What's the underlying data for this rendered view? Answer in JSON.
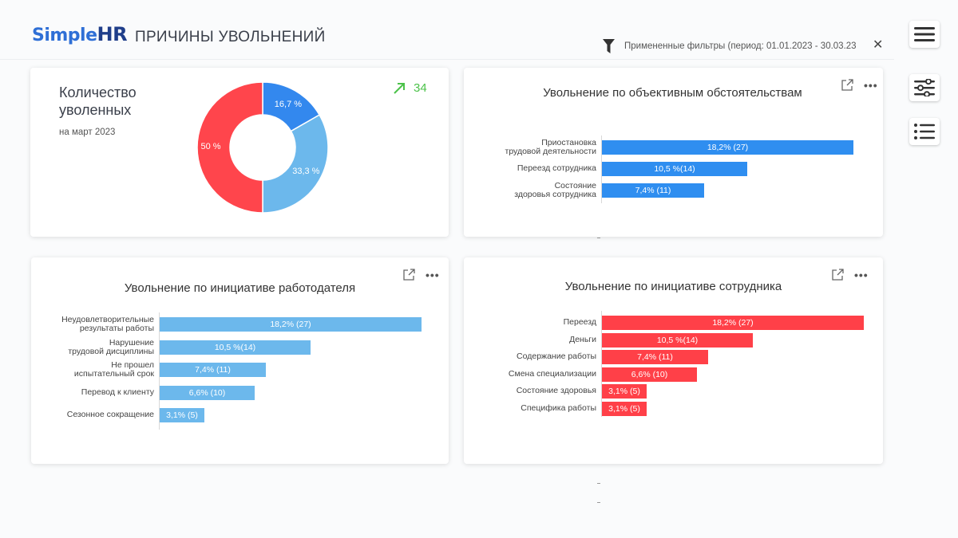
{
  "app": {
    "logo_simple": "Simple",
    "logo_hr": "HR",
    "title": "ПРИЧИНЫ УВОЛЬНЕНИЙ"
  },
  "filter": {
    "text": "Примененные фильтры (период: 01.01.2023 - 30.03.23",
    "close": "✕"
  },
  "side_buttons": {
    "menu": "menu-icon",
    "settings": "sliders-icon",
    "list": "list-icon"
  },
  "kpi": {
    "title_line1": "Количество",
    "title_line2": "уволенных",
    "subtitle": "на март 2023",
    "count": "34",
    "donut": [
      {
        "label": "16,7 %",
        "value": 16.7,
        "color": "#3388ee"
      },
      {
        "label": "33,3 %",
        "value": 33.3,
        "color": "#6cb8ec"
      },
      {
        "label": "50 %",
        "value": 50,
        "color": "#ff454c"
      }
    ]
  },
  "objective": {
    "title": "Увольнение по объективным обстоятельствам",
    "color": "#2f8ef0",
    "rows": [
      {
        "label_1": "Приостановка",
        "label_2": "трудовой деятельности",
        "value": 18.2,
        "text": "18,2% (27)"
      },
      {
        "label_1": "Переезд сотрудника",
        "label_2": "",
        "value": 10.5,
        "text": "10,5 %(14)"
      },
      {
        "label_1": "Состояние",
        "label_2": "здоровья сотрудника",
        "value": 7.4,
        "text": "7,4% (11)"
      }
    ]
  },
  "employer": {
    "title": "Увольнение по инициативе работодателя",
    "color": "#6cb8ec",
    "rows": [
      {
        "label_1": "Неудовлетворительные",
        "label_2": "результаты работы",
        "value": 18.2,
        "text": "18,2% (27)"
      },
      {
        "label_1": "Нарушение",
        "label_2": "трудовой дисциплины",
        "value": 10.5,
        "text": "10,5 %(14)"
      },
      {
        "label_1": "Не прошел",
        "label_2": "испытательный срок",
        "value": 7.4,
        "text": "7,4% (11)"
      },
      {
        "label_1": "Перевод к клиенту",
        "label_2": "",
        "value": 6.6,
        "text": "6,6% (10)"
      },
      {
        "label_1": "Сезонное сокращение",
        "label_2": "",
        "value": 3.1,
        "text": "3,1% (5)"
      }
    ]
  },
  "employee": {
    "title": "Увольнение по инициативе сотрудника",
    "color": "#ff4048",
    "rows": [
      {
        "label_1": "Переезд",
        "label_2": "",
        "value": 18.2,
        "text": "18,2% (27)"
      },
      {
        "label_1": "Деньги",
        "label_2": "",
        "value": 10.5,
        "text": "10,5 %(14)"
      },
      {
        "label_1": "Содержание работы",
        "label_2": "",
        "value": 7.4,
        "text": "7,4% (11)"
      },
      {
        "label_1": "Смена специализации",
        "label_2": "",
        "value": 6.6,
        "text": "6,6% (10)"
      },
      {
        "label_1": "Состояние здоровья",
        "label_2": "",
        "value": 3.1,
        "text": "3,1% (5)"
      },
      {
        "label_1": "Специфика работы",
        "label_2": "",
        "value": 3.1,
        "text": "3,1% (5)"
      }
    ]
  }
}
